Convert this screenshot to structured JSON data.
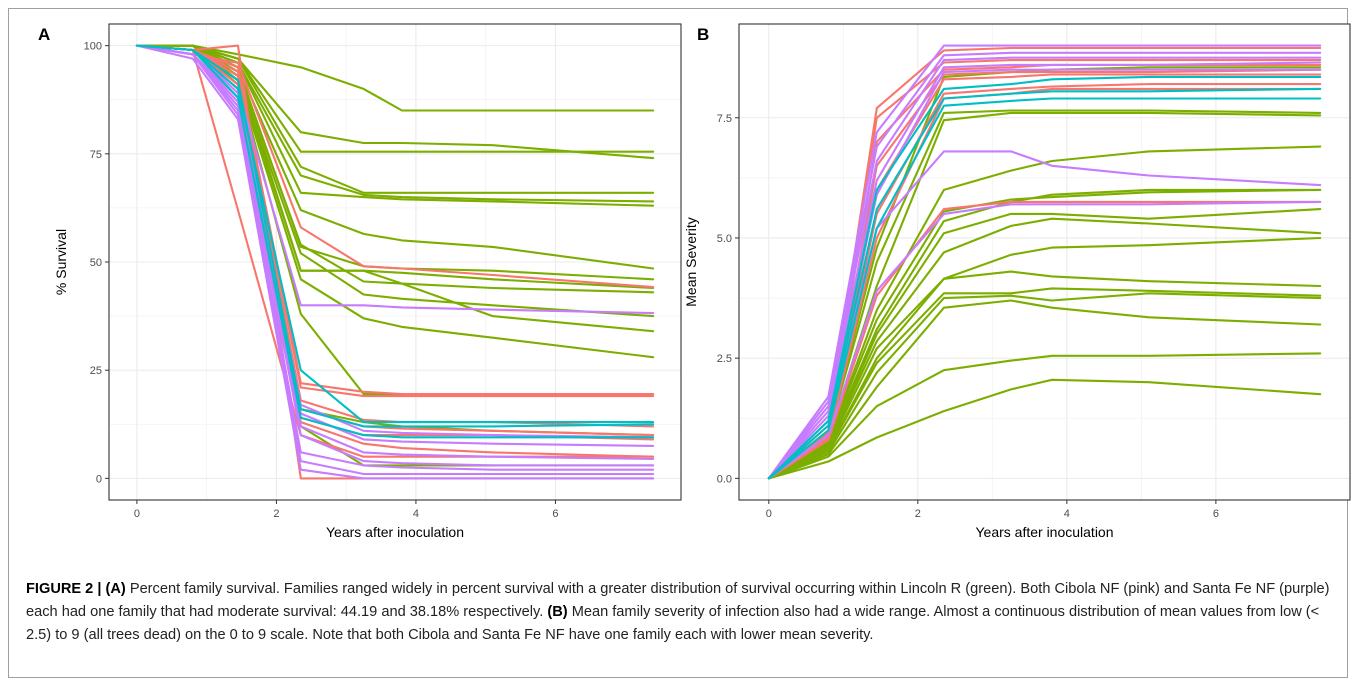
{
  "caption": {
    "figure_label": "FIGURE 2 |",
    "part_a_label": "(A)",
    "part_a_text": " Percent family survival. Families ranged widely in percent survival with a greater distribution of survival occurring within Lincoln R (green). Both Cibola NF (pink) and Santa Fe NF (purple) each had one family that had moderate survival: 44.19 and 38.18% respectively. ",
    "part_b_label": "(B)",
    "part_b_text": " Mean family severity of infection also had a wide range. Almost a continuous distribution of mean values from low (< 2.5) to 9 (all trees dead) on the 0 to 9 scale. Note that both Cibola and Santa Fe NF have one family each with lower mean severity."
  },
  "colors": {
    "green": "#7cae00",
    "pink": "#f8766d",
    "purple": "#c77cff",
    "teal": "#00bfc4",
    "panel_border": "#333333",
    "grid": "#ebebeb"
  },
  "chart_data": [
    {
      "panel": "A",
      "type": "line",
      "xlabel": "Years after inoculation",
      "ylabel": "% Survival",
      "xlim": [
        -0.4,
        7.8
      ],
      "ylim": [
        -5,
        105
      ],
      "xticks": [
        0,
        2,
        4,
        6
      ],
      "yticks": [
        0,
        25,
        50,
        75,
        100
      ],
      "xtick_labels": [
        "0",
        "2",
        "4",
        "6"
      ],
      "ytick_labels": [
        "0",
        "25",
        "50",
        "75",
        "100"
      ],
      "grid": true,
      "x": [
        0,
        0.8,
        1.45,
        2.35,
        3.25,
        3.8,
        5.1,
        7.4
      ],
      "series": [
        {
          "group": "green",
          "values": [
            100,
            100,
            98,
            95,
            90,
            85,
            85,
            85
          ]
        },
        {
          "group": "green",
          "values": [
            100,
            100,
            97,
            80,
            77.5,
            77.5,
            77,
            74
          ]
        },
        {
          "group": "green",
          "values": [
            100,
            100,
            97,
            75.5,
            75.5,
            75.5,
            75.5,
            75.5
          ]
        },
        {
          "group": "green",
          "values": [
            100,
            100,
            97,
            72,
            66,
            66,
            66,
            66
          ]
        },
        {
          "group": "green",
          "values": [
            100,
            100,
            96,
            70,
            65.5,
            65,
            64.5,
            64
          ]
        },
        {
          "group": "green",
          "values": [
            100,
            100,
            96,
            66,
            65,
            64.5,
            64,
            63
          ]
        },
        {
          "group": "green",
          "values": [
            100,
            100,
            95,
            62,
            56.5,
            55,
            53.5,
            48.5
          ]
        },
        {
          "group": "green",
          "values": [
            100,
            100,
            95,
            53.5,
            49,
            48.5,
            48,
            46
          ]
        },
        {
          "group": "green",
          "values": [
            100,
            100,
            94,
            48,
            48,
            47.5,
            46,
            44
          ]
        },
        {
          "group": "green",
          "values": [
            100,
            100,
            94,
            54,
            45.5,
            45,
            44,
            43
          ]
        },
        {
          "group": "green",
          "values": [
            100,
            100,
            93,
            52,
            42.5,
            41.5,
            40,
            37.5
          ]
        },
        {
          "group": "green",
          "values": [
            100,
            100,
            93,
            48,
            48,
            45,
            37.5,
            34
          ]
        },
        {
          "group": "green",
          "values": [
            100,
            100,
            92,
            46,
            37,
            35,
            32.5,
            28
          ]
        },
        {
          "group": "green",
          "values": [
            100,
            100,
            92,
            38,
            19.5,
            19.5,
            19.5,
            19.5
          ]
        },
        {
          "group": "green",
          "values": [
            100,
            100,
            92,
            16,
            13,
            12,
            11,
            10
          ]
        },
        {
          "group": "green",
          "values": [
            100,
            100,
            91,
            12,
            3,
            3,
            3,
            3
          ]
        },
        {
          "group": "pink",
          "values": [
            100,
            99,
            100,
            0,
            0,
            0,
            0,
            0
          ]
        },
        {
          "group": "pink",
          "values": [
            100,
            99,
            62,
            10,
            5,
            5,
            5,
            5
          ]
        },
        {
          "group": "pink",
          "values": [
            100,
            98,
            96,
            58,
            49,
            48.5,
            47,
            44.19
          ]
        },
        {
          "group": "pink",
          "values": [
            100,
            99,
            95,
            22,
            20,
            19.5,
            19.5,
            19.5
          ]
        },
        {
          "group": "pink",
          "values": [
            100,
            99,
            94,
            21,
            19,
            19,
            19,
            19
          ]
        },
        {
          "group": "pink",
          "values": [
            100,
            99,
            93,
            18,
            13.5,
            13,
            13,
            12
          ]
        },
        {
          "group": "pink",
          "values": [
            100,
            99,
            92,
            16,
            12,
            11.5,
            11,
            10
          ]
        },
        {
          "group": "pink",
          "values": [
            100,
            99,
            91,
            14,
            10,
            10,
            10,
            9
          ]
        },
        {
          "group": "pink",
          "values": [
            100,
            99,
            90,
            13,
            8,
            7,
            6,
            5
          ]
        },
        {
          "group": "purple",
          "values": [
            100,
            99,
            90,
            40,
            40,
            39.5,
            39,
            38.18
          ]
        },
        {
          "group": "purple",
          "values": [
            100,
            99,
            89,
            17,
            11,
            10.5,
            10,
            9.5
          ]
        },
        {
          "group": "purple",
          "values": [
            100,
            98,
            88,
            15,
            9,
            8.5,
            8,
            7.5
          ]
        },
        {
          "group": "purple",
          "values": [
            100,
            98,
            87,
            12,
            6,
            5.5,
            5,
            4.5
          ]
        },
        {
          "group": "purple",
          "values": [
            100,
            98,
            86,
            10,
            4,
            3.5,
            3,
            3
          ]
        },
        {
          "group": "purple",
          "values": [
            100,
            98,
            85,
            6,
            3,
            2.5,
            2,
            2
          ]
        },
        {
          "group": "purple",
          "values": [
            100,
            98,
            84,
            4,
            1,
            1,
            1,
            1
          ]
        },
        {
          "group": "purple",
          "values": [
            100,
            97,
            83,
            2,
            0,
            0,
            0,
            0
          ]
        },
        {
          "group": "teal",
          "values": [
            100,
            99,
            90,
            25,
            13,
            13,
            13,
            13
          ]
        },
        {
          "group": "teal",
          "values": [
            100,
            99,
            92,
            16,
            12,
            12,
            12,
            12.5
          ]
        },
        {
          "group": "teal",
          "values": [
            100,
            99,
            88,
            14,
            10,
            9.5,
            9.5,
            9.5
          ]
        }
      ]
    },
    {
      "panel": "B",
      "type": "line",
      "xlabel": "Years after inoculation",
      "ylabel": "Mean Severity",
      "xlim": [
        -0.4,
        7.8
      ],
      "ylim": [
        -0.45,
        9.45
      ],
      "xticks": [
        0,
        2,
        4,
        6
      ],
      "yticks": [
        0,
        2.5,
        5,
        7.5
      ],
      "xtick_labels": [
        "0",
        "2",
        "4",
        "6"
      ],
      "ytick_labels": [
        "0.0",
        "2.5",
        "5.0",
        "7.5"
      ],
      "grid": true,
      "x": [
        0,
        0.8,
        1.45,
        2.35,
        3.25,
        3.8,
        5.1,
        7.4
      ],
      "series": [
        {
          "group": "green",
          "values": [
            0,
            0.35,
            0.85,
            1.4,
            1.85,
            2.05,
            2.0,
            1.75
          ]
        },
        {
          "group": "green",
          "values": [
            0,
            0.45,
            1.5,
            2.25,
            2.45,
            2.55,
            2.55,
            2.6
          ]
        },
        {
          "group": "green",
          "values": [
            0,
            0.5,
            1.9,
            3.55,
            3.7,
            3.55,
            3.35,
            3.2
          ]
        },
        {
          "group": "green",
          "values": [
            0,
            0.55,
            2.2,
            3.75,
            3.8,
            3.7,
            3.85,
            3.75
          ]
        },
        {
          "group": "green",
          "values": [
            0,
            0.6,
            2.4,
            3.85,
            3.85,
            3.95,
            3.9,
            3.8
          ]
        },
        {
          "group": "green",
          "values": [
            0,
            0.6,
            2.5,
            4.15,
            4.3,
            4.2,
            4.1,
            4.0
          ]
        },
        {
          "group": "green",
          "values": [
            0,
            0.65,
            2.7,
            4.15,
            4.65,
            4.8,
            4.85,
            5.0
          ]
        },
        {
          "group": "green",
          "values": [
            0,
            0.7,
            2.85,
            4.7,
            5.25,
            5.4,
            5.3,
            5.1
          ]
        },
        {
          "group": "green",
          "values": [
            0,
            0.7,
            3.0,
            5.1,
            5.5,
            5.5,
            5.4,
            5.6
          ]
        },
        {
          "group": "green",
          "values": [
            0,
            0.75,
            3.1,
            5.35,
            5.75,
            5.9,
            6.0,
            6.0
          ]
        },
        {
          "group": "green",
          "values": [
            0,
            0.8,
            3.3,
            5.55,
            5.8,
            5.85,
            5.95,
            6.0
          ]
        },
        {
          "group": "green",
          "values": [
            0,
            0.8,
            3.5,
            6.0,
            6.4,
            6.6,
            6.8,
            6.9
          ]
        },
        {
          "group": "green",
          "values": [
            0,
            0.85,
            4.0,
            7.45,
            7.6,
            7.6,
            7.6,
            7.55
          ]
        },
        {
          "group": "green",
          "values": [
            0,
            0.9,
            4.5,
            7.6,
            7.65,
            7.65,
            7.65,
            7.6
          ]
        },
        {
          "group": "green",
          "values": [
            0,
            0.9,
            4.8,
            8.35,
            8.45,
            8.5,
            8.55,
            8.55
          ]
        },
        {
          "group": "pink",
          "values": [
            0,
            1.1,
            7.7,
            8.9,
            8.95,
            8.95,
            8.95,
            8.95
          ]
        },
        {
          "group": "pink",
          "values": [
            0,
            1.0,
            7.5,
            8.65,
            8.7,
            8.7,
            8.7,
            8.7
          ]
        },
        {
          "group": "pink",
          "values": [
            0,
            1.0,
            7.0,
            8.5,
            8.55,
            8.6,
            8.6,
            8.6
          ]
        },
        {
          "group": "pink",
          "values": [
            0,
            0.95,
            6.5,
            8.4,
            8.45,
            8.45,
            8.45,
            8.5
          ]
        },
        {
          "group": "pink",
          "values": [
            0,
            0.9,
            6.0,
            8.3,
            8.35,
            8.4,
            8.4,
            8.4
          ]
        },
        {
          "group": "pink",
          "values": [
            0,
            0.9,
            5.5,
            8.0,
            8.1,
            8.15,
            8.2,
            8.2
          ]
        },
        {
          "group": "pink",
          "values": [
            0,
            0.85,
            5.0,
            7.9,
            8.0,
            8.1,
            8.1,
            8.1
          ]
        },
        {
          "group": "pink",
          "values": [
            0,
            0.8,
            3.8,
            5.6,
            5.75,
            5.75,
            5.75,
            5.75
          ]
        },
        {
          "group": "purple",
          "values": [
            0,
            1.7,
            7.2,
            9.0,
            9.0,
            9.0,
            9.0,
            9.0
          ]
        },
        {
          "group": "purple",
          "values": [
            0,
            1.6,
            6.9,
            8.8,
            8.85,
            8.85,
            8.85,
            8.85
          ]
        },
        {
          "group": "purple",
          "values": [
            0,
            1.5,
            6.6,
            8.7,
            8.75,
            8.75,
            8.75,
            8.75
          ]
        },
        {
          "group": "purple",
          "values": [
            0,
            1.4,
            6.2,
            8.55,
            8.6,
            8.6,
            8.6,
            8.65
          ]
        },
        {
          "group": "purple",
          "values": [
            0,
            1.3,
            5.9,
            8.45,
            8.5,
            8.5,
            8.5,
            8.5
          ]
        },
        {
          "group": "purple",
          "values": [
            0,
            1.2,
            5.2,
            6.8,
            6.8,
            6.5,
            6.3,
            6.1
          ]
        },
        {
          "group": "purple",
          "values": [
            0,
            0.9,
            3.9,
            5.5,
            5.7,
            5.7,
            5.7,
            5.75
          ]
        },
        {
          "group": "teal",
          "values": [
            0,
            1.2,
            6.0,
            8.1,
            8.2,
            8.3,
            8.35,
            8.35
          ]
        },
        {
          "group": "teal",
          "values": [
            0,
            1.1,
            5.6,
            7.9,
            8.0,
            8.05,
            8.05,
            8.1
          ]
        },
        {
          "group": "teal",
          "values": [
            0,
            1.0,
            5.2,
            7.75,
            7.85,
            7.9,
            7.9,
            7.9
          ]
        }
      ]
    }
  ]
}
